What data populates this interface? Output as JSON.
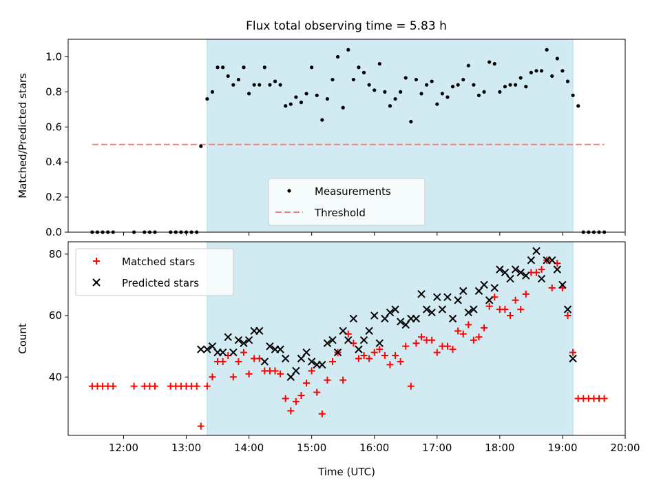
{
  "title": "Flux total observing time = 5.83 h",
  "colors": {
    "shade": "#add8e6",
    "threshold": "#f08080",
    "measurement": "#000000",
    "matched": "#ff0000",
    "predicted": "#000000"
  },
  "chart_data": [
    {
      "type": "scatter",
      "title": "Flux total observing time = 5.83 h",
      "ylabel": "Matched/Predicted stars",
      "xlabel": "",
      "xlim": [
        "11:07",
        "20:00"
      ],
      "ylim": [
        0,
        1.1
      ],
      "yticks": [
        "0.0",
        "0.2",
        "0.4",
        "0.6",
        "0.8",
        "1.0"
      ],
      "shaded_region": [
        "13:20",
        "19:10"
      ],
      "legend": {
        "position": "lower-center",
        "entries": [
          "Measurements",
          "Threshold"
        ]
      },
      "threshold": {
        "name": "Threshold",
        "value": 0.5,
        "x_range": [
          "11:30",
          "19:40"
        ]
      },
      "series": [
        {
          "name": "Measurements",
          "x": [
            "11:30",
            "11:35",
            "11:40",
            "11:45",
            "11:50",
            "12:10",
            "12:20",
            "12:25",
            "12:30",
            "12:45",
            "12:50",
            "12:55",
            "13:00",
            "13:05",
            "13:10",
            "13:14",
            "13:20",
            "13:25",
            "13:30",
            "13:35",
            "13:40",
            "13:45",
            "13:50",
            "13:55",
            "14:00",
            "14:05",
            "14:10",
            "14:15",
            "14:20",
            "14:25",
            "14:30",
            "14:35",
            "14:40",
            "14:45",
            "14:50",
            "14:55",
            "15:00",
            "15:05",
            "15:10",
            "15:15",
            "15:20",
            "15:25",
            "15:30",
            "15:35",
            "15:40",
            "15:45",
            "15:50",
            "15:55",
            "16:00",
            "16:05",
            "16:10",
            "16:15",
            "16:20",
            "16:25",
            "16:30",
            "16:35",
            "16:40",
            "16:45",
            "16:50",
            "16:55",
            "17:00",
            "17:05",
            "17:10",
            "17:15",
            "17:20",
            "17:25",
            "17:30",
            "17:35",
            "17:40",
            "17:45",
            "17:50",
            "17:55",
            "18:00",
            "18:05",
            "18:10",
            "18:15",
            "18:20",
            "18:25",
            "18:30",
            "18:35",
            "18:40",
            "18:45",
            "18:50",
            "18:55",
            "19:00",
            "19:05",
            "19:10",
            "19:15",
            "19:20",
            "19:25",
            "19:30",
            "19:35",
            "19:40"
          ],
          "y": [
            0,
            0,
            0,
            0,
            0,
            0,
            0,
            0,
            0,
            0,
            0,
            0,
            0,
            0,
            0,
            0.49,
            0.76,
            0.8,
            0.94,
            0.94,
            0.89,
            0.84,
            0.87,
            0.94,
            0.79,
            0.84,
            0.84,
            0.94,
            0.84,
            0.86,
            0.84,
            0.72,
            0.73,
            0.77,
            0.74,
            0.79,
            0.94,
            0.78,
            0.64,
            0.76,
            0.87,
            1.0,
            0.71,
            1.04,
            0.87,
            0.94,
            0.91,
            0.84,
            0.81,
            0.96,
            0.8,
            0.72,
            0.76,
            0.8,
            0.88,
            0.63,
            0.87,
            0.79,
            0.84,
            0.86,
            0.73,
            0.79,
            0.77,
            0.83,
            0.84,
            0.87,
            0.95,
            0.84,
            0.78,
            0.8,
            0.97,
            0.96,
            0.8,
            0.83,
            0.84,
            0.84,
            0.88,
            0.83,
            0.91,
            0.92,
            0.92,
            1.04,
            0.89,
            0.99,
            0.92,
            0.86,
            0.78,
            0.72,
            0,
            0,
            0,
            0,
            0
          ]
        }
      ]
    },
    {
      "type": "scatter",
      "xlabel": "Time (UTC)",
      "ylabel": "Count",
      "xlim": [
        "11:07",
        "20:00"
      ],
      "ylim": [
        21,
        84
      ],
      "yticks": [
        "40",
        "60",
        "80"
      ],
      "xticks": [
        "12:00",
        "13:00",
        "14:00",
        "15:00",
        "16:00",
        "17:00",
        "18:00",
        "19:00",
        "20:00"
      ],
      "shaded_region": [
        "13:20",
        "19:10"
      ],
      "legend": {
        "position": "upper-left",
        "entries": [
          "Matched stars",
          "Predicted stars"
        ]
      },
      "series": [
        {
          "name": "Matched stars",
          "x": [
            "11:30",
            "11:35",
            "11:40",
            "11:45",
            "11:50",
            "12:10",
            "12:20",
            "12:25",
            "12:30",
            "12:45",
            "12:50",
            "12:55",
            "13:00",
            "13:05",
            "13:10",
            "13:14",
            "13:20",
            "13:25",
            "13:30",
            "13:35",
            "13:40",
            "13:45",
            "13:50",
            "13:55",
            "14:00",
            "14:05",
            "14:10",
            "14:15",
            "14:20",
            "14:25",
            "14:30",
            "14:35",
            "14:40",
            "14:45",
            "14:50",
            "14:55",
            "15:00",
            "15:05",
            "15:10",
            "15:15",
            "15:20",
            "15:25",
            "15:30",
            "15:35",
            "15:40",
            "15:45",
            "15:50",
            "15:55",
            "16:00",
            "16:05",
            "16:10",
            "16:15",
            "16:20",
            "16:25",
            "16:30",
            "16:35",
            "16:40",
            "16:45",
            "16:50",
            "16:55",
            "17:00",
            "17:05",
            "17:10",
            "17:15",
            "17:20",
            "17:25",
            "17:30",
            "17:35",
            "17:40",
            "17:45",
            "17:50",
            "17:55",
            "18:00",
            "18:05",
            "18:10",
            "18:15",
            "18:20",
            "18:25",
            "18:30",
            "18:35",
            "18:40",
            "18:45",
            "18:50",
            "18:55",
            "19:00",
            "19:05",
            "19:10",
            "19:15",
            "19:20",
            "19:25",
            "19:30",
            "19:35",
            "19:40"
          ],
          "y": [
            37,
            37,
            37,
            37,
            37,
            37,
            37,
            37,
            37,
            37,
            37,
            37,
            37,
            37,
            37,
            24,
            37,
            40,
            45,
            45,
            47,
            40,
            45,
            48,
            41,
            46,
            46,
            42,
            42,
            42,
            41,
            33,
            29,
            32,
            34,
            38,
            42,
            35,
            28,
            39,
            45,
            48,
            39,
            54,
            51,
            46,
            47,
            46,
            48,
            49,
            47,
            44,
            47,
            45,
            50,
            37,
            51,
            53,
            52,
            52,
            48,
            50,
            50,
            49,
            55,
            54,
            57,
            52,
            53,
            56,
            63,
            66,
            62,
            62,
            60,
            65,
            62,
            67,
            74,
            74,
            75,
            78,
            69,
            77,
            69,
            60,
            48,
            33,
            33,
            33,
            33,
            33,
            33
          ]
        },
        {
          "name": "Predicted stars",
          "x": [
            "13:14",
            "13:20",
            "13:25",
            "13:30",
            "13:35",
            "13:40",
            "13:45",
            "13:50",
            "13:55",
            "14:00",
            "14:05",
            "14:10",
            "14:15",
            "14:20",
            "14:25",
            "14:30",
            "14:35",
            "14:40",
            "14:45",
            "14:50",
            "14:55",
            "15:00",
            "15:05",
            "15:10",
            "15:15",
            "15:20",
            "15:25",
            "15:30",
            "15:35",
            "15:40",
            "15:45",
            "15:50",
            "15:55",
            "16:00",
            "16:05",
            "16:10",
            "16:15",
            "16:20",
            "16:25",
            "16:30",
            "16:35",
            "16:40",
            "16:45",
            "16:50",
            "16:55",
            "17:00",
            "17:05",
            "17:10",
            "17:15",
            "17:20",
            "17:25",
            "17:30",
            "17:35",
            "17:40",
            "17:45",
            "17:50",
            "17:55",
            "18:00",
            "18:05",
            "18:10",
            "18:15",
            "18:20",
            "18:25",
            "18:30",
            "18:35",
            "18:40",
            "18:45",
            "18:50",
            "18:55",
            "19:00",
            "19:05",
            "19:10"
          ],
          "y": [
            49,
            49,
            50,
            48,
            48,
            53,
            48,
            52,
            51,
            52,
            55,
            55,
            45,
            50,
            49,
            49,
            46,
            40,
            42,
            46,
            48,
            45,
            44,
            44,
            51,
            52,
            48,
            55,
            52,
            59,
            49,
            52,
            55,
            60,
            51,
            59,
            61,
            62,
            58,
            57,
            59,
            59,
            67,
            62,
            61,
            66,
            62,
            66,
            59,
            65,
            68,
            61,
            62,
            68,
            70,
            65,
            69,
            75,
            74,
            72,
            75,
            74,
            73,
            78,
            81,
            72,
            78,
            78,
            75,
            70,
            62,
            46
          ]
        }
      ]
    }
  ]
}
